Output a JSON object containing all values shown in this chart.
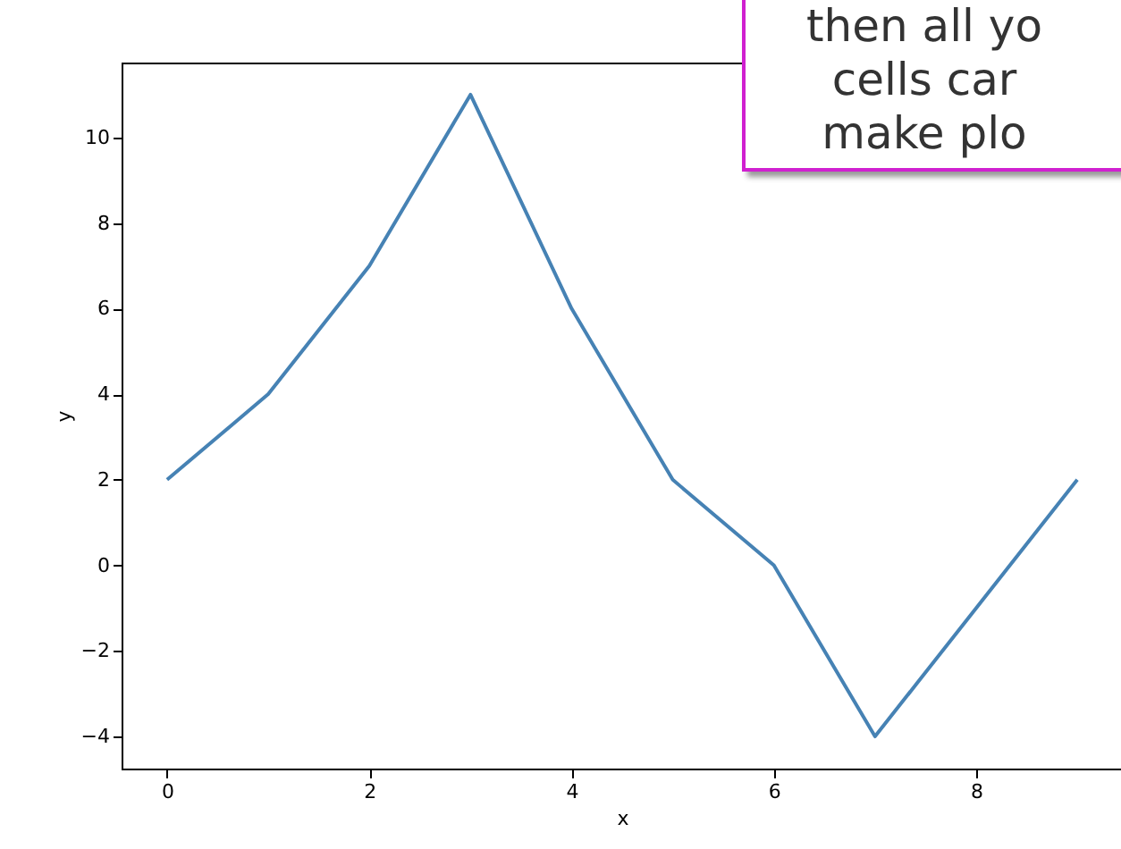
{
  "chart_data": {
    "type": "line",
    "xlabel": "x",
    "ylabel": "y",
    "x": [
      0,
      1,
      2,
      3,
      4,
      5,
      6,
      7,
      8,
      9
    ],
    "series": [
      {
        "color": "#4682b4",
        "values": [
          2,
          4,
          7,
          11,
          6,
          2,
          0,
          -4,
          -1,
          2
        ]
      }
    ],
    "xlim": [
      -0.45,
      9.45
    ],
    "xticks": [
      0,
      2,
      4,
      6,
      8
    ],
    "ylim": [
      -4.75,
      11.75
    ],
    "yticks": [
      -4,
      -2,
      0,
      2,
      4,
      6,
      8,
      10
    ],
    "grid": false,
    "legend": false,
    "annotations": [
      "then all yo\ncells car\nmake plo"
    ]
  }
}
